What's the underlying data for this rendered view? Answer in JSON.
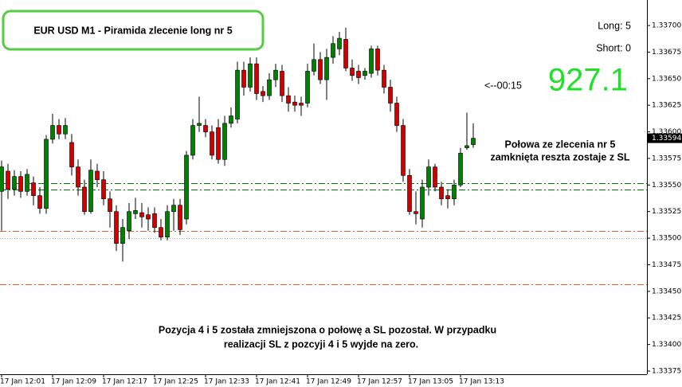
{
  "chart_data": {
    "type": "candlestick",
    "title": "EUR USD M1 - Piramida zlecenie long nr 5",
    "long_label": "Long: 5",
    "short_label": "Short: 0",
    "timer_label": "<--00:15",
    "profit": "927.1",
    "annotation_lines": [
      "Połowa ze zlecenia nr 5",
      "zamknięta reszta zostaje z SL"
    ],
    "note_lines": [
      "Pozycja 4 i 5 została zmniejszona o połowę a SL pozostał. W przypadku",
      "realizacji SL z pozcyji 4 i 5 wyjde na zero."
    ],
    "last_price": 1.33594,
    "up_color": "#008000",
    "down_color": "#d00000",
    "categories": [
      "17 Jan 12:01",
      null,
      null,
      null,
      null,
      null,
      null,
      null,
      "17 Jan 12:09",
      null,
      null,
      null,
      null,
      null,
      null,
      null,
      "17 Jan 12:17",
      null,
      null,
      null,
      null,
      null,
      null,
      null,
      "17 Jan 12:25",
      null,
      null,
      null,
      null,
      null,
      null,
      null,
      "17 Jan 12:33",
      null,
      null,
      null,
      null,
      null,
      null,
      null,
      "17 Jan 12:41",
      null,
      null,
      null,
      null,
      null,
      null,
      null,
      "17 Jan 12:49",
      null,
      null,
      null,
      null,
      null,
      null,
      null,
      "17 Jan 12:57",
      null,
      null,
      null,
      null,
      null,
      null,
      null,
      "17 Jan 13:05",
      null,
      null,
      null,
      null,
      null,
      null,
      null,
      "17 Jan 13:13",
      null,
      null
    ],
    "open": [
      1.33544,
      1.33563,
      1.33546,
      1.33558,
      1.33544,
      1.33552,
      1.3354,
      1.33528,
      1.33593,
      1.33606,
      1.33598,
      1.3359,
      1.33567,
      1.33548,
      1.33525,
      1.33563,
      1.33555,
      1.33537,
      1.33525,
      1.33495,
      1.33507,
      1.33523,
      1.33524,
      1.33522,
      1.33523,
      1.3351,
      1.33501,
      1.33525,
      1.33531,
      1.33518,
      1.33578,
      1.33606,
      1.33606,
      1.336,
      1.33604,
      1.33574,
      1.33608,
      1.33612,
      1.33658,
      1.33642,
      1.33664,
      1.33638,
      1.33634,
      1.33649,
      1.33657,
      1.33634,
      1.33628,
      1.33627,
      1.33627,
      1.33657,
      1.33668,
      1.33649,
      1.3367,
      1.33678,
      1.33687,
      1.3366,
      1.33657,
      1.33653,
      1.33655,
      1.33678,
      1.33658,
      1.33642,
      1.33627,
      1.33606,
      1.33559,
      1.33525,
      1.33518,
      1.33548,
      1.33567,
      1.33548,
      1.3354,
      1.33537,
      1.3355,
      1.33585,
      1.33588
    ],
    "high": [
      1.33573,
      1.3357,
      1.33564,
      1.33563,
      1.33565,
      1.33558,
      1.33548,
      1.33597,
      1.33617,
      1.33612,
      1.33613,
      1.33598,
      1.33574,
      1.33555,
      1.33574,
      1.3357,
      1.33563,
      1.33544,
      1.33531,
      1.33518,
      1.33533,
      1.33538,
      1.33533,
      1.33529,
      1.33529,
      1.33518,
      1.33531,
      1.33537,
      1.33537,
      1.33582,
      1.33612,
      1.33633,
      1.33612,
      1.33606,
      1.33612,
      1.33615,
      1.33623,
      1.33666,
      1.33666,
      1.3367,
      1.3367,
      1.33643,
      1.33655,
      1.33664,
      1.33663,
      1.33642,
      1.33634,
      1.33633,
      1.33664,
      1.33683,
      1.33675,
      1.33678,
      1.3369,
      1.33694,
      1.33698,
      1.33668,
      1.33663,
      1.3366,
      1.33681,
      1.33681,
      1.33663,
      1.33649,
      1.33633,
      1.33612,
      1.33565,
      1.33544,
      1.33555,
      1.33574,
      1.3357,
      1.33553,
      1.33546,
      1.33555,
      1.33585,
      1.33618,
      1.33608
    ],
    "low": [
      1.33507,
      1.33537,
      1.3354,
      1.33538,
      1.3354,
      1.33531,
      1.33523,
      1.33523,
      1.33589,
      1.33593,
      1.33593,
      1.33559,
      1.3354,
      1.33522,
      1.33523,
      1.33548,
      1.33531,
      1.3351,
      1.33488,
      1.33478,
      1.33499,
      1.33518,
      1.3351,
      1.33507,
      1.33505,
      1.33498,
      1.33498,
      1.33507,
      1.33503,
      1.33513,
      1.33574,
      1.336,
      1.33595,
      1.33574,
      1.3357,
      1.33568,
      1.33604,
      1.33608,
      1.33634,
      1.33638,
      1.3363,
      1.33628,
      1.3363,
      1.33642,
      1.33628,
      1.33619,
      1.33619,
      1.33615,
      1.33623,
      1.33653,
      1.33645,
      1.3363,
      1.33664,
      1.33672,
      1.33657,
      1.33648,
      1.33645,
      1.33649,
      1.33651,
      1.33653,
      1.33636,
      1.33619,
      1.336,
      1.33553,
      1.33522,
      1.33513,
      1.3351,
      1.3354,
      1.33544,
      1.33531,
      1.33528,
      1.33531,
      1.33548,
      1.33583,
      1.33585
    ],
    "close": [
      1.33567,
      1.33546,
      1.33558,
      1.33544,
      1.3356,
      1.3354,
      1.33528,
      1.33593,
      1.33606,
      1.33598,
      1.33606,
      1.33567,
      1.33548,
      1.33525,
      1.33564,
      1.33555,
      1.33537,
      1.33525,
      1.33495,
      1.3351,
      1.33525,
      1.33526,
      1.3352,
      1.33518,
      1.3351,
      1.33501,
      1.33525,
      1.33531,
      1.33508,
      1.33578,
      1.33606,
      1.33608,
      1.336,
      1.33578,
      1.33574,
      1.33608,
      1.33615,
      1.33658,
      1.33642,
      1.33664,
      1.33636,
      1.33634,
      1.33649,
      1.33658,
      1.33634,
      1.33627,
      1.33625,
      1.33625,
      1.33657,
      1.33668,
      1.33649,
      1.3367,
      1.33683,
      1.33688,
      1.3366,
      1.33653,
      1.33651,
      1.33657,
      1.33678,
      1.33658,
      1.33642,
      1.33627,
      1.33606,
      1.33559,
      1.33525,
      1.33523,
      1.33548,
      1.33567,
      1.33548,
      1.33537,
      1.33537,
      1.3355,
      1.3358,
      1.33587,
      1.33594
    ],
    "levels": [
      {
        "value": 1.33552,
        "color": "#008000",
        "dash": "dashdot"
      },
      {
        "value": 1.33546,
        "color": "#008000",
        "dash": "dashdot"
      },
      {
        "value": 1.33507,
        "color": "#e06020",
        "dash": "dashdot"
      },
      {
        "value": 1.33457,
        "color": "#e06020",
        "dash": "dashdot"
      },
      {
        "value": 1.335,
        "color": "#b0b0b0",
        "dash": "dot"
      }
    ],
    "ylim": [
      1.33372,
      1.33724
    ],
    "yticks": [
      {
        "value": 1.33375,
        "label": "1.33375"
      },
      {
        "value": 1.334,
        "label": "1.33400"
      },
      {
        "value": 1.33425,
        "label": "1.33425"
      },
      {
        "value": 1.3345,
        "label": "1.33450"
      },
      {
        "value": 1.33475,
        "label": "1.33475"
      },
      {
        "value": 1.335,
        "label": "1.33500"
      },
      {
        "value": 1.33525,
        "label": "1.33525"
      },
      {
        "value": 1.3355,
        "label": "1.33550"
      },
      {
        "value": 1.33575,
        "label": "1.33575"
      },
      {
        "value": 1.336,
        "label": "1.33600"
      },
      {
        "value": 1.33625,
        "label": "1.33625"
      },
      {
        "value": 1.3365,
        "label": "1.33650"
      },
      {
        "value": 1.33675,
        "label": "1.33675"
      },
      {
        "value": 1.337,
        "label": "1.33700"
      }
    ]
  }
}
